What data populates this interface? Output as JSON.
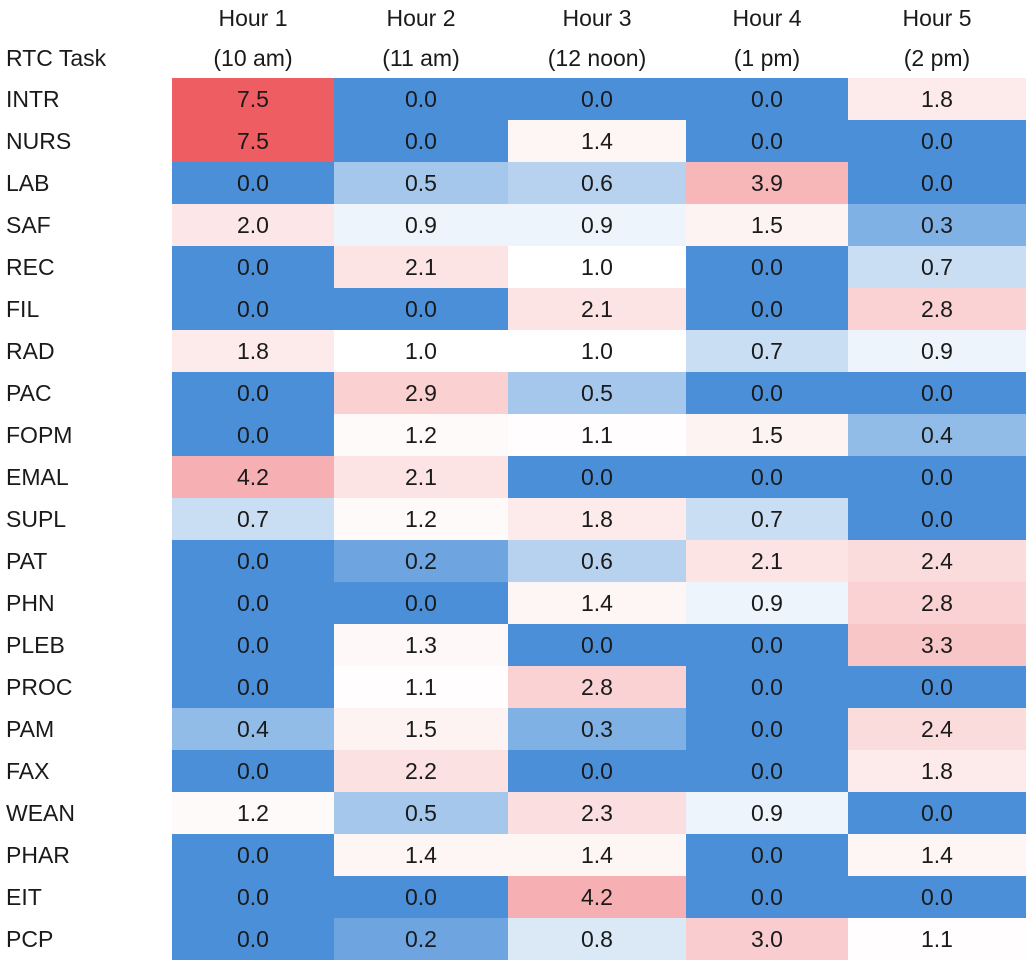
{
  "chart_data": {
    "type": "heatmap",
    "title": "",
    "row_header": "RTC Task",
    "columns": [
      {
        "line1": "Hour 1",
        "line2": "(10 am)"
      },
      {
        "line1": "Hour 2",
        "line2": "(11 am)"
      },
      {
        "line1": "Hour 3",
        "line2": "(12 noon)"
      },
      {
        "line1": "Hour 4",
        "line2": "(1 pm)"
      },
      {
        "line1": "Hour 5",
        "line2": "(2 pm)"
      }
    ],
    "rows": [
      "INTR",
      "NURS",
      "LAB",
      "SAF",
      "REC",
      "FIL",
      "RAD",
      "PAC",
      "FOPM",
      "EMAL",
      "SUPL",
      "PAT",
      "PHN",
      "PLEB",
      "PROC",
      "PAM",
      "FAX",
      "WEAN",
      "PHAR",
      "EIT",
      "PCP"
    ],
    "values": [
      [
        "7.5",
        "0.0",
        "0.0",
        "0.0",
        "1.8"
      ],
      [
        "7.5",
        "0.0",
        "1.4",
        "0.0",
        "0.0"
      ],
      [
        "0.0",
        "0.5",
        "0.6",
        "3.9",
        "0.0"
      ],
      [
        "2.0",
        "0.9",
        "0.9",
        "1.5",
        "0.3"
      ],
      [
        "0.0",
        "2.1",
        "1.0",
        "0.0",
        "0.7"
      ],
      [
        "0.0",
        "0.0",
        "2.1",
        "0.0",
        "2.8"
      ],
      [
        "1.8",
        "1.0",
        "1.0",
        "0.7",
        "0.9"
      ],
      [
        "0.0",
        "2.9",
        "0.5",
        "0.0",
        "0.0"
      ],
      [
        "0.0",
        "1.2",
        "1.1",
        "1.5",
        "0.4"
      ],
      [
        "4.2",
        "2.1",
        "0.0",
        "0.0",
        "0.0"
      ],
      [
        "0.7",
        "1.2",
        "1.8",
        "0.7",
        "0.0"
      ],
      [
        "0.0",
        "0.2",
        "0.6",
        "2.1",
        "2.4"
      ],
      [
        "0.0",
        "0.0",
        "1.4",
        "0.9",
        "2.8"
      ],
      [
        "0.0",
        "1.3",
        "0.0",
        "0.0",
        "3.3"
      ],
      [
        "0.0",
        "1.1",
        "2.8",
        "0.0",
        "0.0"
      ],
      [
        "0.4",
        "1.5",
        "0.3",
        "0.0",
        "2.4"
      ],
      [
        "0.0",
        "2.2",
        "0.0",
        "0.0",
        "1.8"
      ],
      [
        "1.2",
        "0.5",
        "2.3",
        "0.9",
        "0.0"
      ],
      [
        "0.0",
        "1.4",
        "1.4",
        "0.0",
        "1.4"
      ],
      [
        "0.0",
        "0.0",
        "4.2",
        "0.0",
        "0.0"
      ],
      [
        "0.0",
        "0.2",
        "0.8",
        "3.0",
        "1.1"
      ]
    ],
    "color_scale": {
      "low": "#4a8fd8",
      "mid": "#ffffff",
      "high": "#ed5d62",
      "mid_value": 1.0,
      "high_value": 7.5
    }
  }
}
